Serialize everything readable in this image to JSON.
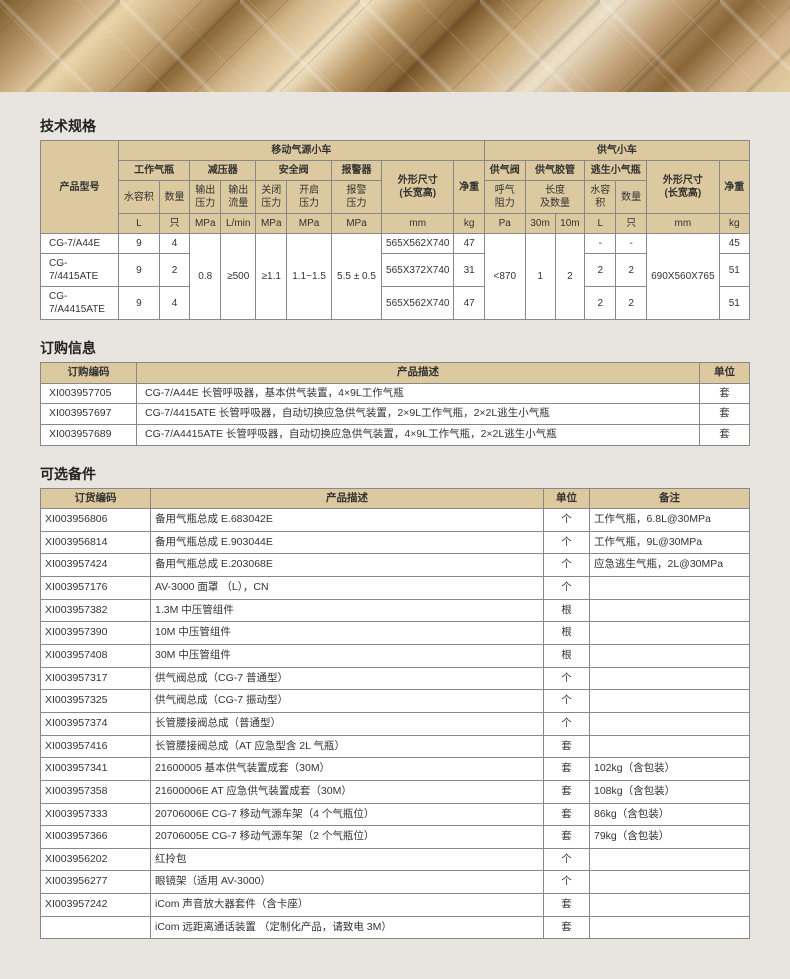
{
  "sections": {
    "spec_title": "技术规格",
    "order_title": "订购信息",
    "parts_title": "可选备件"
  },
  "spec": {
    "group_product": "产品型号",
    "group_mobile": "移动气源小车",
    "group_supply": "供气小车",
    "h_work_cyl": "工作气瓶",
    "h_reducer": "减压器",
    "h_safety": "安全阀",
    "h_alarm": "报警器",
    "h_dim": "外形尺寸\n(长宽高)",
    "h_weight": "净重",
    "h_valve": "供气阀",
    "h_hose": "供气胶管",
    "h_escape": "逃生小气瓶",
    "h_dim2": "外形尺寸\n(长宽高)",
    "h_weight2": "净重",
    "sh_vol": "水容积",
    "sh_qty": "数量",
    "sh_out_p": "输出压力",
    "sh_out_f": "输出流量",
    "sh_close_p": "关闭压力",
    "sh_open_p": "开启压力",
    "sh_alarm_p": "报警压力",
    "sh_breath": "呼气阻力",
    "sh_len": "长度及数量",
    "sh_vol2": "水容积",
    "sh_qty2": "数量",
    "u_L": "L",
    "u_zhi": "只",
    "u_MPa": "MPa",
    "u_Lmin": "L/min",
    "u_mm": "mm",
    "u_kg": "kg",
    "u_Pa": "Pa",
    "u_30m": "30m",
    "u_10m": "10m",
    "rows": [
      {
        "model": "CG-7/A44E",
        "vol": "9",
        "qty": "4",
        "dim": "565X562X740",
        "w": "47",
        "evol": "-",
        "eqty": "-",
        "w2": "45"
      },
      {
        "model": "CG-7/4415ATE",
        "vol": "9",
        "qty": "2",
        "dim": "565X372X740",
        "w": "31",
        "evol": "2",
        "eqty": "2",
        "w2": "51"
      },
      {
        "model": "CG-7/A4415ATE",
        "vol": "9",
        "qty": "4",
        "dim": "565X562X740",
        "w": "47",
        "evol": "2",
        "eqty": "2",
        "w2": "51"
      }
    ],
    "shared": {
      "out_p": "0.8",
      "out_f": "≥500",
      "close_p": "≥1.1",
      "open_p": "1.1~1.5",
      "alarm_p": "5.5 ± 0.5",
      "breath": "<870",
      "len30": "1",
      "len10": "2",
      "dim2": "690X560X765"
    }
  },
  "order": {
    "h_code": "订购编码",
    "h_desc": "产品描述",
    "h_unit": "单位",
    "rows": [
      {
        "code": "XI003957705",
        "desc": "CG-7/A44E 长管呼吸器，基本供气装置，4×9L工作气瓶",
        "unit": "套"
      },
      {
        "code": "XI003957697",
        "desc": "CG-7/4415ATE 长管呼吸器，自动切换应急供气装置，2×9L工作气瓶，2×2L逃生小气瓶",
        "unit": "套"
      },
      {
        "code": "XI003957689",
        "desc": "CG-7/A4415ATE 长管呼吸器，自动切换应急供气装置，4×9L工作气瓶，2×2L逃生小气瓶",
        "unit": "套"
      }
    ]
  },
  "parts": {
    "h_code": "订货编码",
    "h_desc": "产品描述",
    "h_unit": "单位",
    "h_note": "备注",
    "rows": [
      {
        "code": "XI003956806",
        "desc": "备用气瓶总成 E.683042E",
        "unit": "个",
        "note": "工作气瓶，6.8L@30MPa"
      },
      {
        "code": "XI003956814",
        "desc": "备用气瓶总成 E.903044E",
        "unit": "个",
        "note": "工作气瓶，9L@30MPa"
      },
      {
        "code": "XI003957424",
        "desc": "备用气瓶总成 E.203068E",
        "unit": "个",
        "note": "应急逃生气瓶，2L@30MPa"
      },
      {
        "code": "XI003957176",
        "desc": "AV-3000 面罩 （L），CN",
        "unit": "个",
        "note": ""
      },
      {
        "code": "XI003957382",
        "desc": "1.3M 中压管组件",
        "unit": "根",
        "note": ""
      },
      {
        "code": "XI003957390",
        "desc": "10M 中压管组件",
        "unit": "根",
        "note": ""
      },
      {
        "code": "XI003957408",
        "desc": "30M 中压管组件",
        "unit": "根",
        "note": ""
      },
      {
        "code": "XI003957317",
        "desc": "供气阀总成（CG-7 普通型）",
        "unit": "个",
        "note": ""
      },
      {
        "code": "XI003957325",
        "desc": "供气阀总成（CG-7 振动型）",
        "unit": "个",
        "note": ""
      },
      {
        "code": "XI003957374",
        "desc": "长管腰接阀总成（普通型）",
        "unit": "个",
        "note": ""
      },
      {
        "code": "XI003957416",
        "desc": "长管腰接阀总成（AT 应急型含 2L 气瓶）",
        "unit": "套",
        "note": ""
      },
      {
        "code": "XI003957341",
        "desc": "21600005 基本供气装置成套（30M）",
        "unit": "套",
        "note": "102kg（含包装）"
      },
      {
        "code": "XI003957358",
        "desc": "21600006E AT 应急供气装置成套（30M）",
        "unit": "套",
        "note": "108kg（含包装）"
      },
      {
        "code": "XI003957333",
        "desc": "20706006E CG-7 移动气源车架（4 个气瓶位）",
        "unit": "套",
        "note": "86kg（含包装）"
      },
      {
        "code": "XI003957366",
        "desc": "20706005E CG-7 移动气源车架（2 个气瓶位）",
        "unit": "套",
        "note": "79kg（含包装）"
      },
      {
        "code": "XI003956202",
        "desc": "红拎包",
        "unit": "个",
        "note": ""
      },
      {
        "code": "XI003956277",
        "desc": "眼镜架（适用 AV-3000）",
        "unit": "个",
        "note": ""
      },
      {
        "code": "XI003957242",
        "desc": "iCom 声音放大器套件（含卡座）",
        "unit": "套",
        "note": ""
      },
      {
        "code": "",
        "desc": "iCom 远距离通话装置 （定制化产品，请致电 3M）",
        "unit": "套",
        "note": ""
      }
    ]
  }
}
